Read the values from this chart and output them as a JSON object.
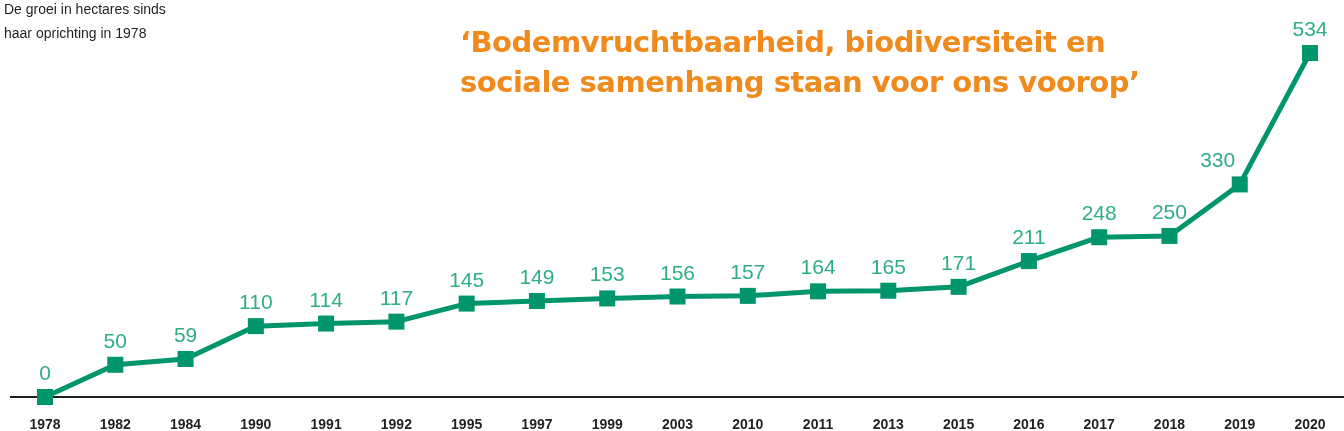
{
  "chart_data": {
    "type": "line",
    "title": "‘Bodemvruchtbaarheid, biodiversiteit en sociale samenhang staan voor ons voorop’",
    "subtitle": "De groei in hectares sinds haar oprichting in 1978",
    "categories": [
      "1978",
      "1982",
      "1984",
      "1990",
      "1991",
      "1992",
      "1995",
      "1997",
      "1999",
      "2003",
      "2010",
      "2011",
      "2013",
      "2015",
      "2016",
      "2017",
      "2018",
      "2019",
      "2020"
    ],
    "series": [
      {
        "color": "#00956a",
        "values": [
          0,
          50,
          59,
          110,
          114,
          117,
          145,
          149,
          153,
          156,
          157,
          164,
          165,
          171,
          211,
          248,
          250,
          330,
          534
        ]
      }
    ],
    "data_labels": true,
    "marker": "square",
    "line_style": "solid"
  }
}
